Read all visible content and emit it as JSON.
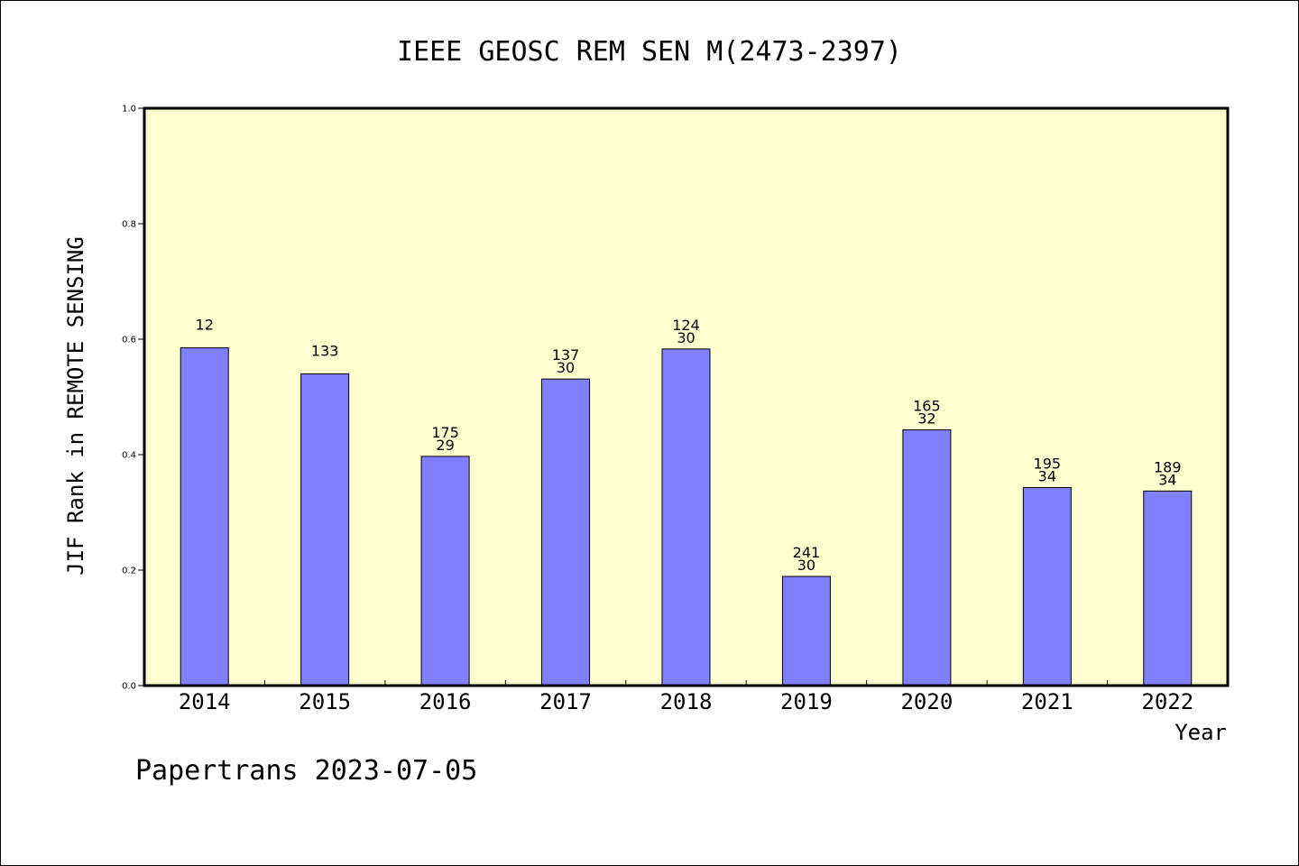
{
  "chart_data": {
    "type": "bar",
    "title": "IEEE GEOSC REM SEN M(2473-2397)",
    "ylabel": "JIF Rank in REMOTE SENSING",
    "xlabel": "Year",
    "ylim": [
      0.0,
      1.0
    ],
    "yticks": [
      "0.0",
      "0.2",
      "0.4",
      "0.6",
      "0.8",
      "1.0"
    ],
    "categories": [
      "2014",
      "2015",
      "2016",
      "2017",
      "2018",
      "2019",
      "2020",
      "2021",
      "2022"
    ],
    "values": [
      0.585,
      0.54,
      0.397,
      0.531,
      0.583,
      0.189,
      0.443,
      0.343,
      0.337
    ],
    "labels_top": [
      "12",
      "133",
      "175",
      "137",
      "124",
      "241",
      "165",
      "195",
      "189"
    ],
    "labels_bottom": [
      "",
      "",
      "29",
      "30",
      "30",
      "30",
      "32",
      "34",
      "34"
    ],
    "bar_color": "#8080ff",
    "plot_background": "#ffffd0",
    "grid": false
  },
  "footer": "Papertrans 2023-07-05"
}
